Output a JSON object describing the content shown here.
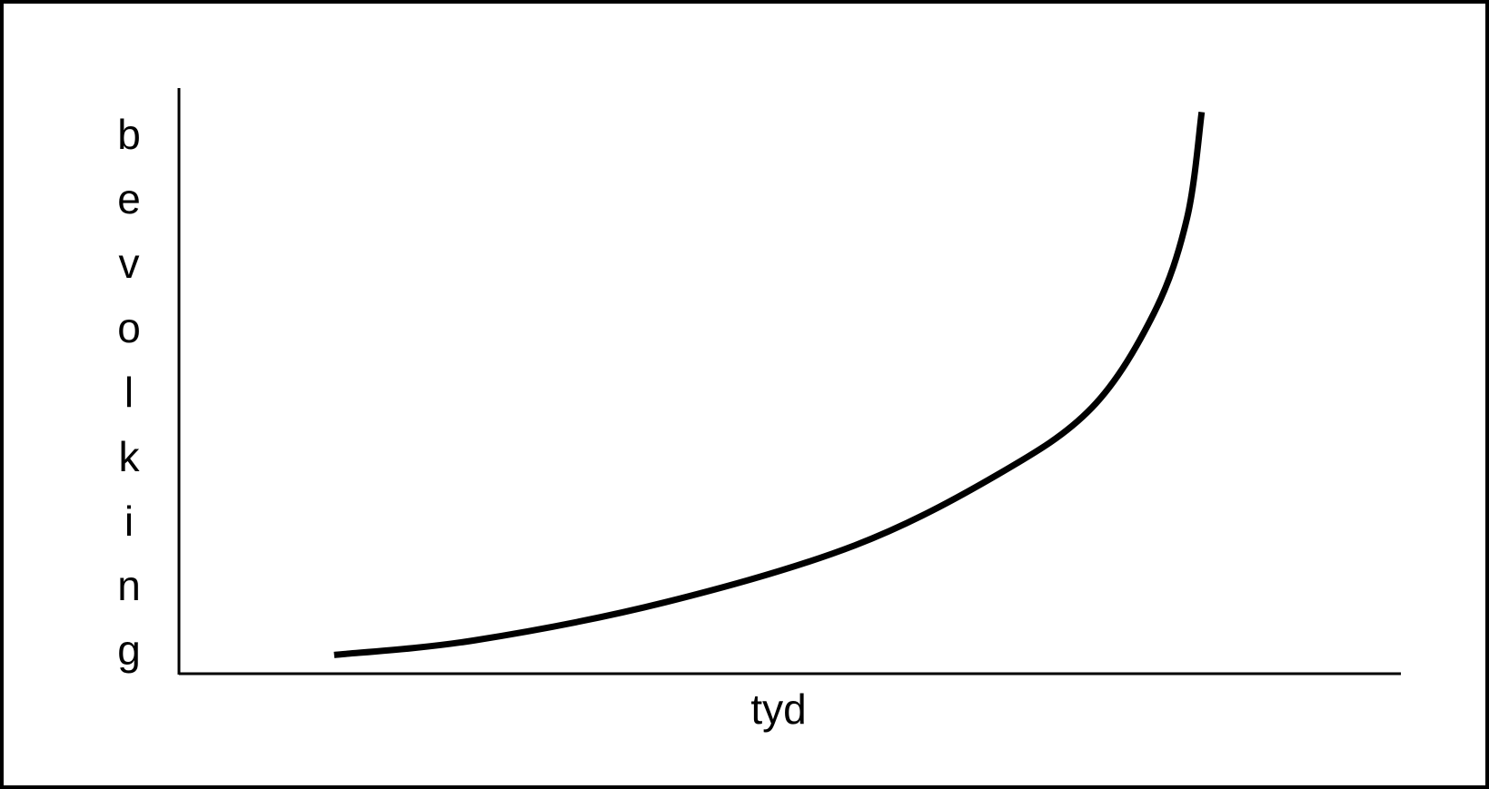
{
  "chart_data": {
    "type": "line",
    "x_label": "tyd",
    "y_label": "bevolking",
    "x": [
      12.7,
      24.2,
      39.8,
      55.3,
      67.0,
      74.7,
      79.8,
      82.5,
      83.7
    ],
    "series": [
      {
        "color": "#000000",
        "values": [
          3.2,
          5.7,
          12.2,
          21.9,
          34.0,
          45.4,
          61.6,
          77.8,
          95.9
        ]
      }
    ],
    "xlim": [
      0,
      100
    ],
    "ylim": [
      0,
      100
    ]
  }
}
